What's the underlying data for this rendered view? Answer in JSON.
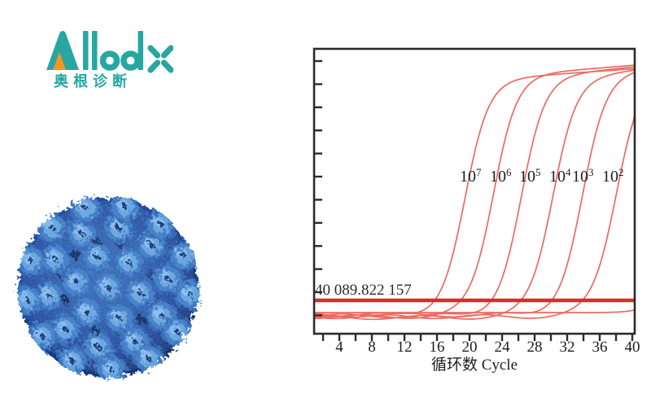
{
  "brand": {
    "name": "Allodx",
    "tagline": "奥根诊断",
    "teal": "#27a7a2",
    "orange": "#f7941e"
  },
  "virus_image": {
    "name": "blue-virus-capsid-particle",
    "colors": {
      "base_dark": "#10306c",
      "capsomere": "#3d79c4",
      "capsomere_light": "#66a3dd",
      "highlight": "#8cc0ee",
      "shadow": "#0a2254"
    }
  },
  "chart_data": {
    "type": "line",
    "title": "",
    "xlabel": "循环数 Cycle",
    "ylabel": "",
    "xlim": [
      1,
      40
    ],
    "x_ticks": [
      4,
      8,
      12,
      16,
      20,
      24,
      28,
      32,
      36,
      40
    ],
    "x_minor_tick_step": 2,
    "y_axis": {
      "labels_visible": false,
      "tick_count": 12
    },
    "grid": false,
    "legend_position": "none",
    "curve_color": "#ec6a61",
    "axis_color": "#2b2b2b",
    "text_color": "#1e1e1e",
    "threshold": {
      "label": "40 089.822 157",
      "color": "#dc2c20"
    },
    "series": [
      {
        "label": "10⁷",
        "mantissa": "10",
        "exponent": "7",
        "ct": 15.6
      },
      {
        "label": "10⁶",
        "mantissa": "10",
        "exponent": "6",
        "ct": 19.0
      },
      {
        "label": "10⁵",
        "mantissa": "10",
        "exponent": "5",
        "ct": 22.5
      },
      {
        "label": "10⁴",
        "mantissa": "10",
        "exponent": "4",
        "ct": 26.3
      },
      {
        "label": "10³",
        "mantissa": "10",
        "exponent": "3",
        "ct": 30.0
      },
      {
        "label": "10²",
        "mantissa": "10",
        "exponent": "2",
        "ct": 34.0
      },
      {
        "label": "",
        "mantissa": "",
        "exponent": "",
        "ct": 41.5
      }
    ]
  }
}
